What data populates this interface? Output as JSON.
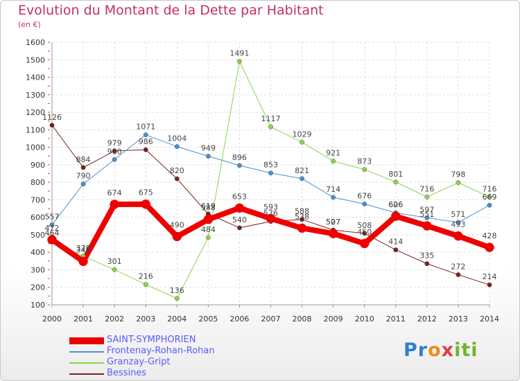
{
  "title": "Evolution du Montant de la Dette par Habitant",
  "subtitle": "(en €)",
  "logo": {
    "text": "Proxiti",
    "p1": "Pr",
    "p2": "o",
    "p3": "x",
    "p4": "iti"
  },
  "chart_data": {
    "type": "line",
    "x": [
      "2000",
      "2001",
      "2002",
      "2003",
      "2004",
      "2005",
      "2006",
      "2007",
      "2008",
      "2009",
      "2010",
      "2011",
      "2012",
      "2013",
      "2014"
    ],
    "yticks": [
      100,
      200,
      300,
      400,
      500,
      600,
      700,
      800,
      900,
      1000,
      1100,
      1200,
      1300,
      1400,
      1500,
      1600
    ],
    "ylim": [
      100,
      1600
    ],
    "grid": true,
    "legend_position": "bottom-left",
    "series": [
      {
        "name": "Bessines",
        "color": "#7a1e1e",
        "width": 1,
        "values": [
          1126,
          884,
          979,
          986,
          820,
          619,
          540,
          576,
          588,
          527,
          508,
          414,
          335,
          272,
          214
        ],
        "labels": [
          "1126",
          "884",
          "979",
          "986",
          "820",
          "619",
          "540",
          "576",
          "588",
          "527",
          "508",
          "414",
          "335",
          "272",
          "214"
        ]
      },
      {
        "name": "Granzay-Gript",
        "color": "#8ed24a",
        "width": 1,
        "values": [
          464,
          378,
          301,
          216,
          136,
          484,
          1491,
          1117,
          1029,
          921,
          873,
          801,
          716,
          798,
          716
        ],
        "labels": [
          "464",
          "378",
          "301",
          "216",
          "136",
          "484",
          "1491",
          "1117",
          "1029",
          "921",
          "873",
          "801",
          "716",
          "798",
          "716"
        ]
      },
      {
        "name": "Frontenay-Rohan-Rohan",
        "color": "#4a90d0",
        "width": 1,
        "values": [
          557,
          790,
          930,
          1071,
          1004,
          949,
          896,
          853,
          821,
          714,
          676,
          626,
          597,
          571,
          669
        ],
        "labels": [
          "557",
          "790",
          "930",
          "1071",
          "1004",
          "949",
          "896",
          "853",
          "821",
          "714",
          "676",
          "626",
          "597",
          "571",
          "669"
        ]
      },
      {
        "name": "SAINT-SYMPHORIEN",
        "color": "#ee0000",
        "width": 8,
        "values": [
          472,
          348,
          674,
          675,
          490,
          588,
          653,
          593,
          538,
          507,
          450,
          606,
          551,
          493,
          428
        ],
        "labels": [
          "472",
          "348",
          "674",
          "675",
          "490",
          "588",
          "653",
          "593",
          "538",
          "507",
          "450",
          "606",
          "551",
          "493",
          "428"
        ]
      }
    ]
  }
}
